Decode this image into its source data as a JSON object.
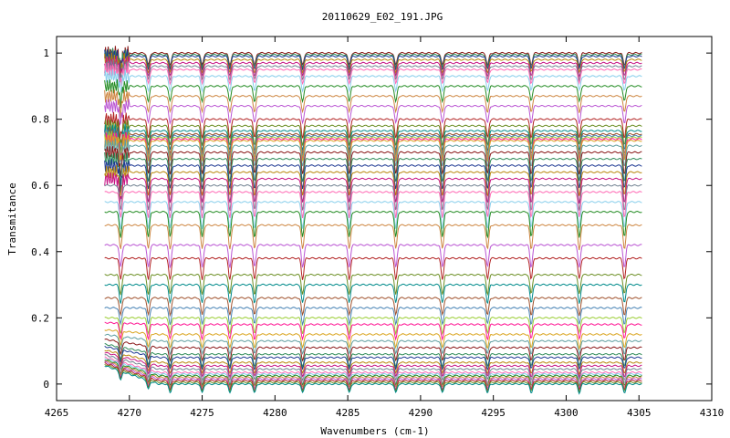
{
  "chart_data": {
    "type": "line",
    "title": "20110629_E02_191.JPG",
    "xlabel": "Wavenumbers (cm-1)",
    "ylabel": "Transmitance",
    "xlim": [
      4265,
      4310
    ],
    "ylim": [
      -0.05,
      1.05
    ],
    "x_ticks": [
      "4265",
      "4270",
      "4275",
      "4280",
      "4285",
      "4290",
      "4295",
      "4300",
      "4305",
      "4310"
    ],
    "y_ticks": [
      "0",
      "0.2",
      "0.4",
      "0.6",
      "0.8",
      "1"
    ],
    "x_range_of_data": [
      4268.3,
      4305.2
    ],
    "absorption_lines_cm1": [
      4269.4,
      4271.3,
      4272.8,
      4275.0,
      4276.9,
      4278.6,
      4281.9,
      4285.1,
      4288.3,
      4291.5,
      4294.6,
      4297.6,
      4300.9,
      4304.0
    ],
    "grid": false,
    "legend": "none",
    "series_baselines": [
      1.0,
      0.995,
      0.99,
      0.98,
      0.97,
      0.96,
      0.95,
      0.93,
      0.9,
      0.87,
      0.84,
      0.8,
      0.78,
      0.765,
      0.755,
      0.75,
      0.745,
      0.74,
      0.735,
      0.72,
      0.7,
      0.68,
      0.66,
      0.64,
      0.62,
      0.6,
      0.58,
      0.55,
      0.52,
      0.48,
      0.42,
      0.38,
      0.33,
      0.3,
      0.26,
      0.23,
      0.2,
      0.18,
      0.15,
      0.13,
      0.11,
      0.09,
      0.08,
      0.065,
      0.055,
      0.045,
      0.035,
      0.03,
      0.025,
      0.02,
      0.015,
      0.01,
      0.005,
      0.0
    ],
    "series_colors": [
      "#8b1a1a",
      "#2e8b57",
      "#1f3a93",
      "#b8860b",
      "#c71585",
      "#708090",
      "#ff69b4",
      "#87ceeb",
      "#228b22",
      "#cd853f",
      "#ba55d3",
      "#b22222",
      "#6b8e23",
      "#008b8b",
      "#a0522d",
      "#4682b4",
      "#9acd32",
      "#ff1493",
      "#daa520",
      "#5f9ea0"
    ]
  }
}
